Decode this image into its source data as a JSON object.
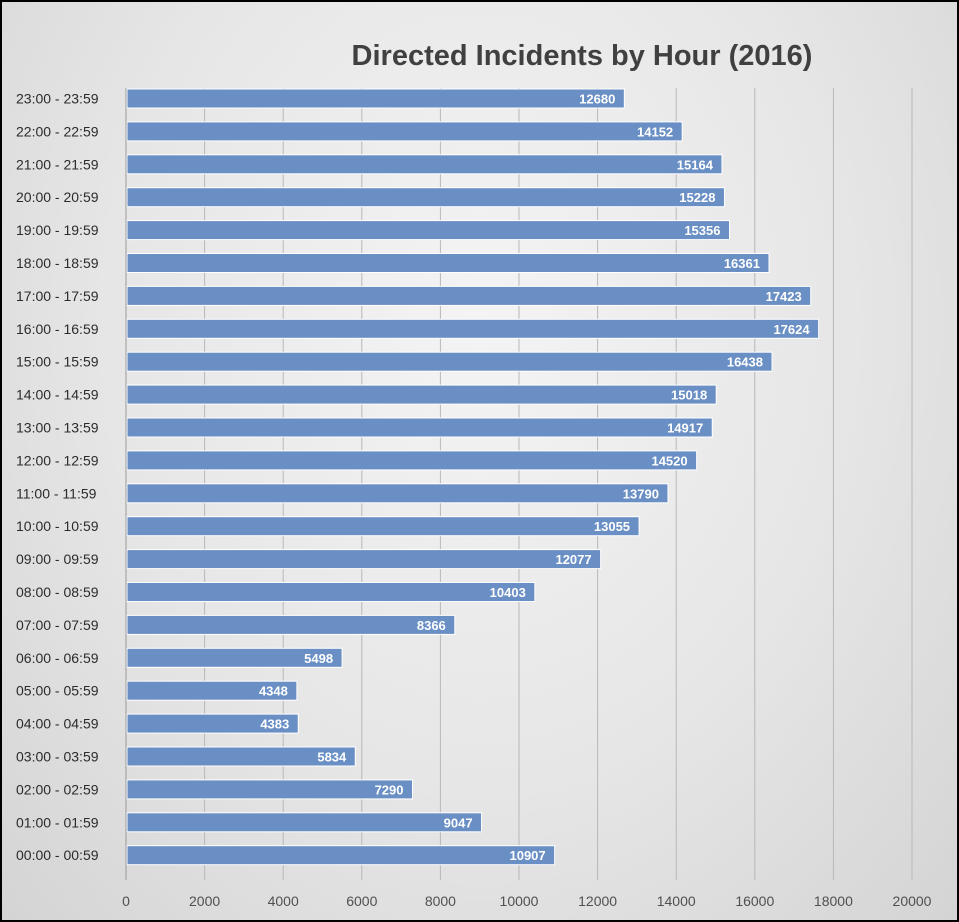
{
  "chart_data": {
    "type": "bar",
    "orientation": "horizontal",
    "title": "Directed Incidents by Hour (2016)",
    "xlabel": "",
    "ylabel": "",
    "xlim": [
      0,
      20000
    ],
    "x_ticks": [
      "0",
      "2000",
      "4000",
      "6000",
      "8000",
      "10000",
      "12000",
      "14000",
      "16000",
      "18000",
      "20000"
    ],
    "grid": "vertical",
    "legend": "none",
    "bar_color": "#6a8fc4",
    "categories": [
      "00:00 - 00:59",
      "01:00 - 01:59",
      "02:00 - 02:59",
      "03:00 - 03:59",
      "04:00 - 04:59",
      "05:00 - 05:59",
      "06:00 - 06:59",
      "07:00 - 07:59",
      "08:00 - 08:59",
      "09:00 - 09:59",
      "10:00 - 10:59",
      "11:00 - 11:59",
      "12:00 - 12:59",
      "13:00 - 13:59",
      "14:00 - 14:59",
      "15:00 - 15:59",
      "16:00 - 16:59",
      "17:00 - 17:59",
      "18:00 - 18:59",
      "19:00 - 19:59",
      "20:00 - 20:59",
      "21:00 - 21:59",
      "22:00 - 22:59",
      "23:00 - 23:59"
    ],
    "values": [
      10907,
      9047,
      7290,
      5834,
      4383,
      4348,
      5498,
      8366,
      10403,
      12077,
      13055,
      13790,
      14520,
      14917,
      15018,
      16438,
      17624,
      17423,
      16361,
      15356,
      15228,
      15164,
      14152,
      12680
    ],
    "data_labels": [
      "10907",
      "9047",
      "7290",
      "5834",
      "4383",
      "4348",
      "5498",
      "8366",
      "10403",
      "12077",
      "13055",
      "13790",
      "14520",
      "14917",
      "15018",
      "16438",
      "17624",
      "17423",
      "16361",
      "15356",
      "15228",
      "15164",
      "14152",
      "12680"
    ]
  }
}
